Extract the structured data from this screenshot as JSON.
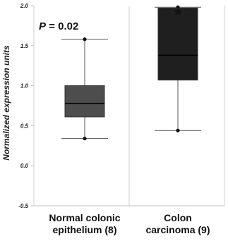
{
  "chart_data": {
    "type": "box",
    "ylabel": "Normalized expression units",
    "ylim": [
      -0.5,
      2.0
    ],
    "yticks": [
      "2.0",
      "1.5",
      "1.0",
      "0.5",
      "0.0",
      "-0.5"
    ],
    "annotation": "P = 0.02",
    "significance_marker": "*",
    "grid": "vertical separator only",
    "categories": [
      {
        "label_lines": [
          "Normal colonic",
          "epithelium (8)"
        ],
        "min": 0.34,
        "q1": 0.61,
        "median": 0.78,
        "q3": 1.0,
        "max": 1.58,
        "color": "#4d4d4d"
      },
      {
        "label_lines": [
          "Colon",
          "carcinoma (9)"
        ],
        "min": 0.44,
        "q1": 1.07,
        "median": 1.38,
        "q3": 1.97,
        "max": 1.98,
        "color": "#1f1f1f"
      }
    ]
  }
}
